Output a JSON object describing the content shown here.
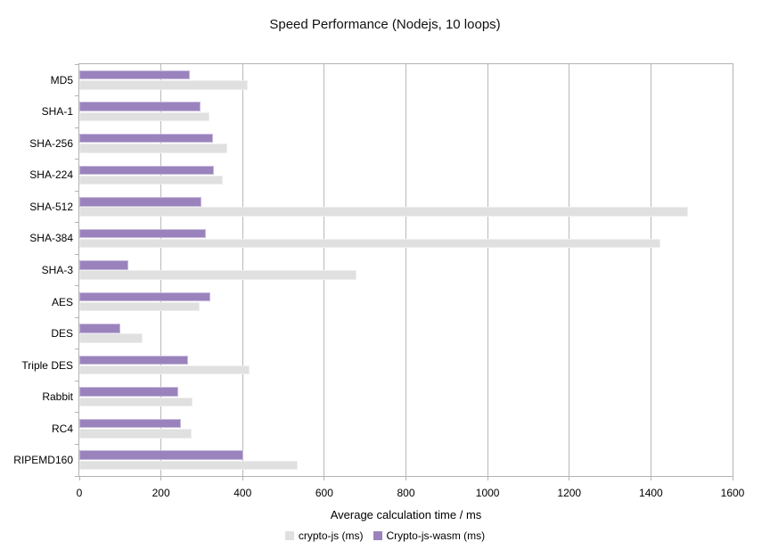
{
  "chart_data": {
    "type": "bar",
    "orientation": "horizontal",
    "title": "Speed Performance (Nodejs, 10 loops)",
    "xlabel": "Average calculation time / ms",
    "ylabel": "",
    "xlim": [
      0,
      1600
    ],
    "xticks": [
      0,
      200,
      400,
      600,
      800,
      1000,
      1200,
      1400,
      1600
    ],
    "grid": true,
    "legend_position": "bottom",
    "categories": [
      "MD5",
      "SHA-1",
      "SHA-256",
      "SHA-224",
      "SHA-512",
      "SHA-384",
      "SHA-3",
      "AES",
      "DES",
      "Triple DES",
      "Rabbit",
      "RC4",
      "RIPEMD160"
    ],
    "series": [
      {
        "name": "crypto-js (ms)",
        "color": "#e0e0e0",
        "values": [
          413,
          319,
          362,
          352,
          1490,
          1424,
          679,
          294,
          156,
          416,
          277,
          274,
          534
        ]
      },
      {
        "name": "Crypto-js-wasm (ms)",
        "color": "#9a83bd",
        "values": [
          270,
          296,
          328,
          330,
          299,
          309,
          119,
          321,
          100,
          266,
          243,
          249,
          401
        ]
      }
    ]
  },
  "colors": {
    "axis": "#b3b3b3",
    "grid": "#b9b9b9",
    "background": "#ffffff",
    "text": "#000000"
  }
}
